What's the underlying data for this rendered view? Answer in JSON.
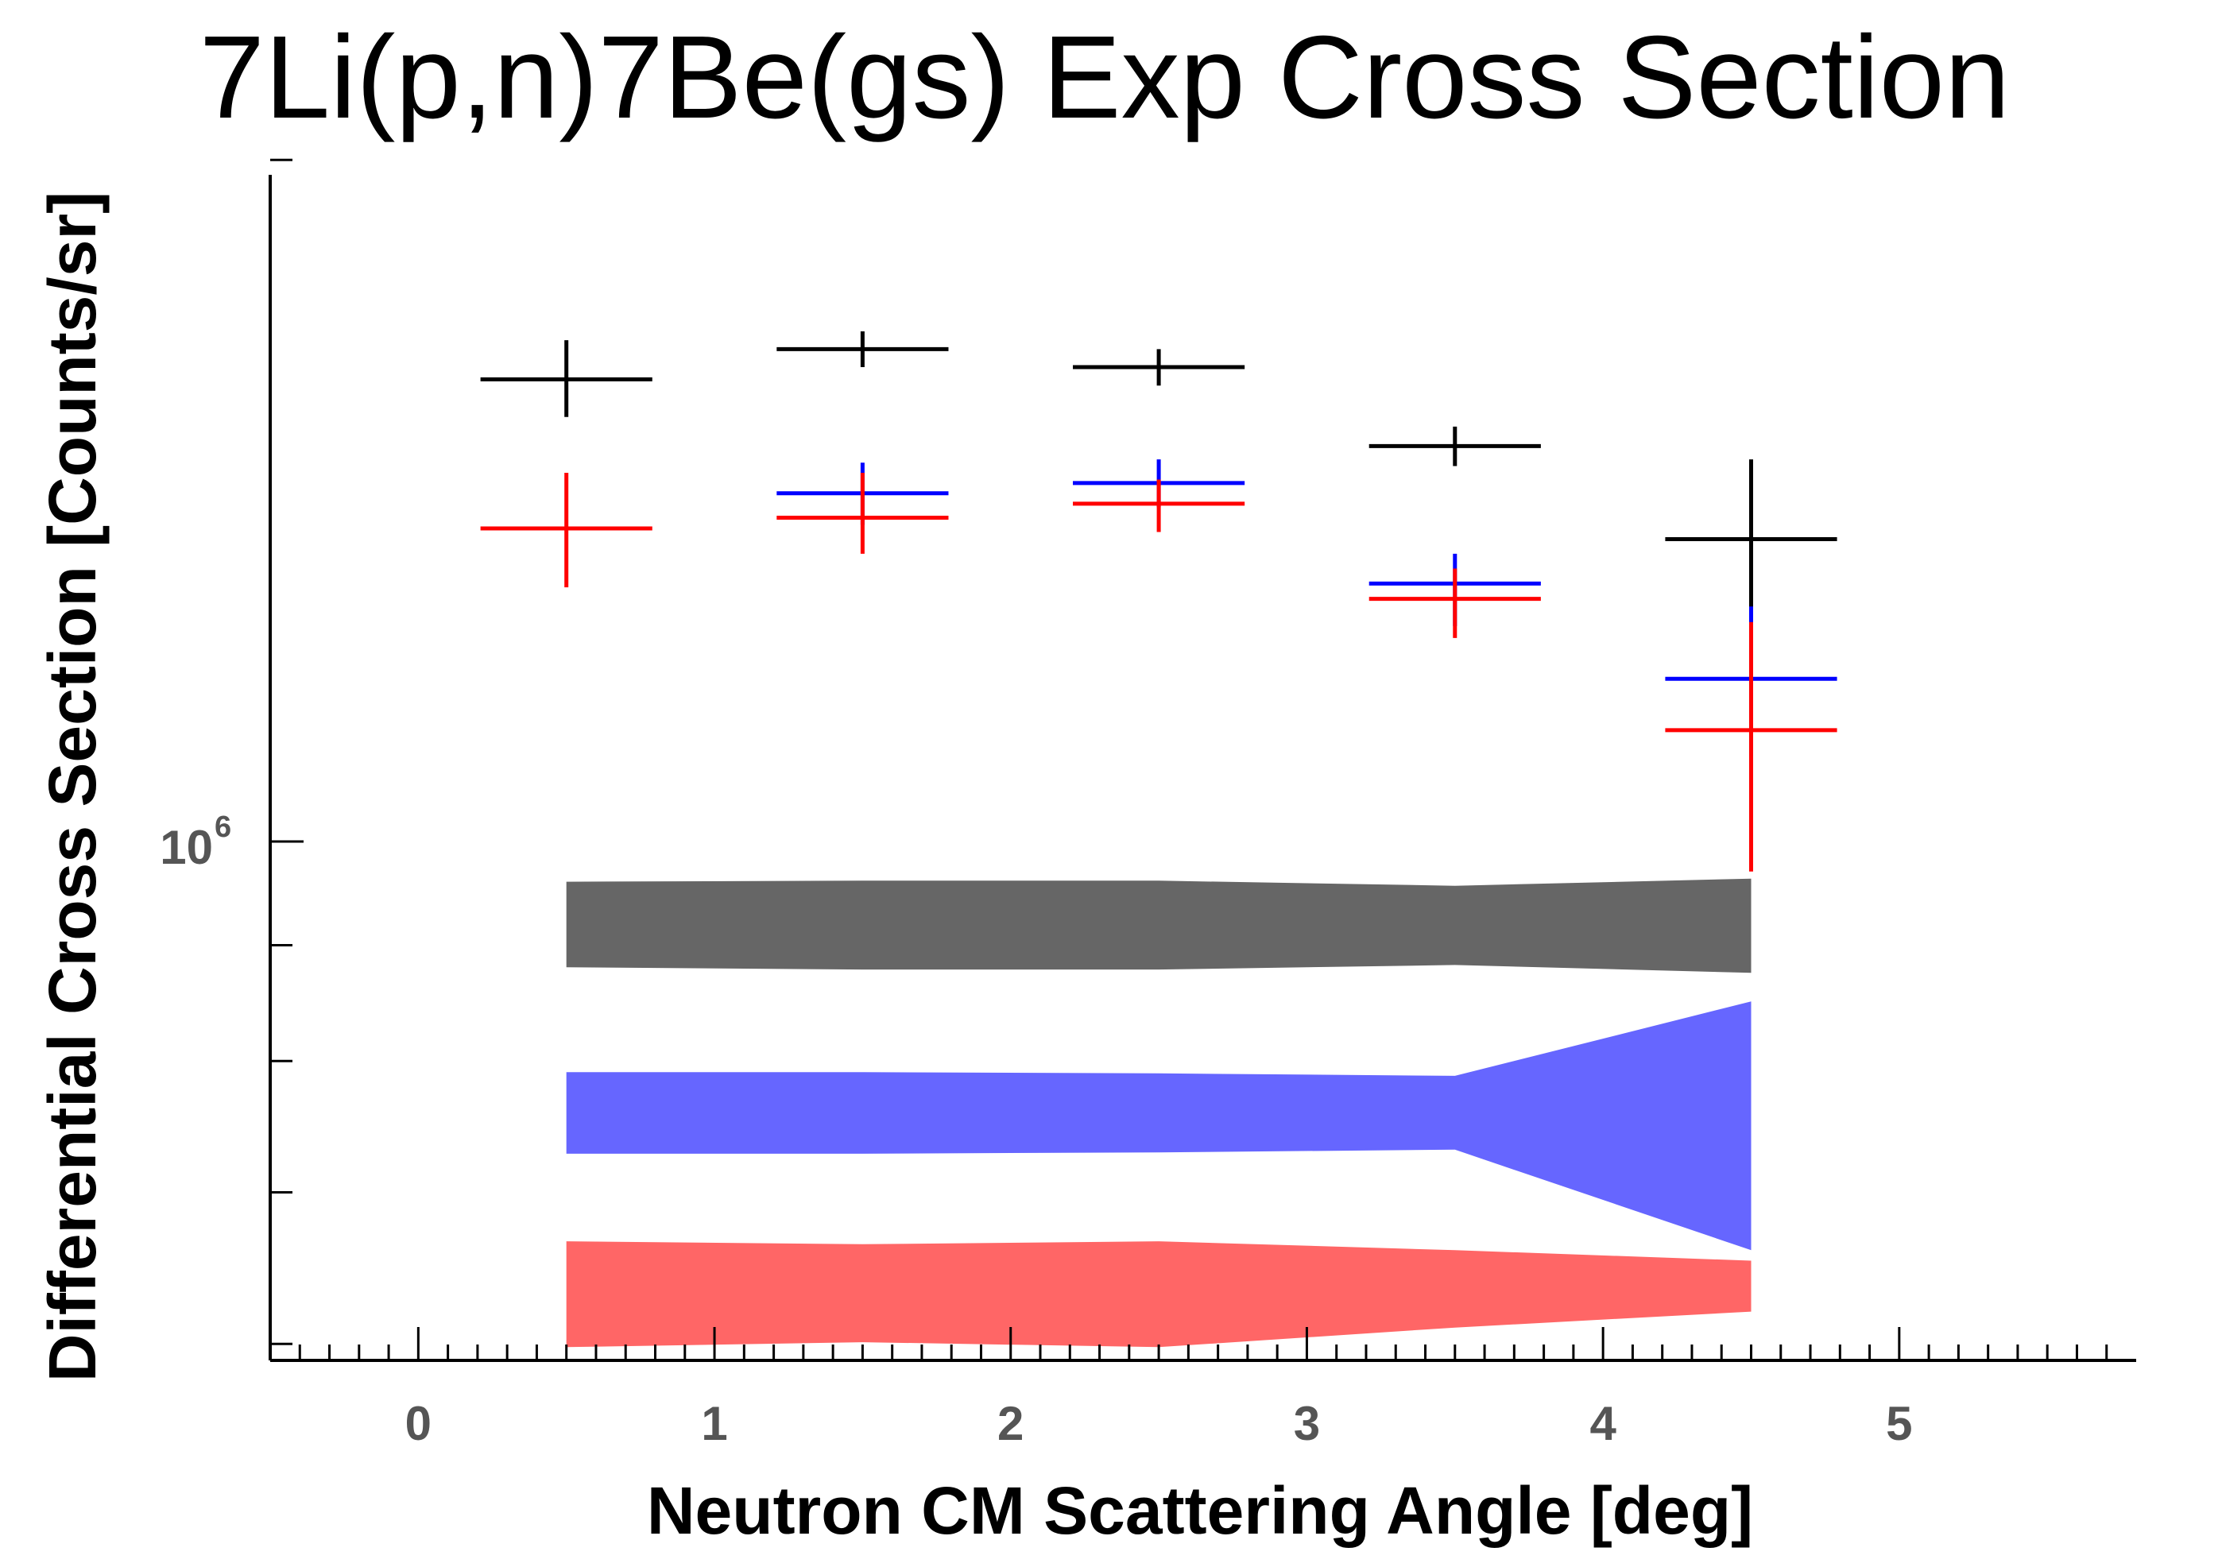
{
  "chart_data": {
    "type": "scatter",
    "title": "7Li(p,n)7Be(gs) Exp Cross Section",
    "xlabel": "Neutron CM Scattering Angle [deg]",
    "ylabel": "Differential Cross Section [Counts/sr]",
    "x_scale": "linear",
    "y_scale": "log",
    "xlim": [
      -0.5,
      5.8
    ],
    "ylim": [
      590000,
      1970000
    ],
    "x_ticks": [
      0,
      1,
      2,
      3,
      4,
      5
    ],
    "x_tick_labels": [
      "0",
      "1",
      "2",
      "3",
      "4",
      "5"
    ],
    "y_tick_label": {
      "base": "10",
      "exponent": "6",
      "value": 1000000
    },
    "y_minor_ticks": [
      600000,
      700000,
      800000,
      900000,
      2000000
    ],
    "grid": false,
    "legend": "none",
    "series": [
      {
        "color": "#000000",
        "x": [
          0.5,
          1.5,
          2.5,
          3.5,
          4.5
        ],
        "xerr": [
          0.29,
          0.29,
          0.29,
          0.29,
          0.29
        ],
        "y": [
          1600000,
          1650000,
          1620000,
          1495000,
          1360000
        ],
        "yerr_low": [
          60000,
          30000,
          30000,
          30000,
          115000
        ],
        "yerr_high": [
          65000,
          30000,
          30000,
          30000,
          115000
        ]
      },
      {
        "color": "#0000ff",
        "x": [
          1.5,
          2.5,
          3.5,
          4.5
        ],
        "xerr": [
          0.29,
          0.29,
          0.29,
          0.29
        ],
        "y": [
          1425000,
          1440000,
          1300000,
          1180000
        ],
        "yerr_low": [
          45000,
          35000,
          55000,
          90000
        ],
        "yerr_high": [
          45000,
          35000,
          40000,
          90000
        ]
      },
      {
        "color": "#ff0000",
        "x": [
          0.5,
          1.5,
          2.5,
          3.5,
          4.5
        ],
        "xerr": [
          0.29,
          0.29,
          0.29,
          0.29,
          0.29
        ],
        "y": [
          1375000,
          1390000,
          1410000,
          1280000,
          1120000
        ],
        "yerr_low": [
          80000,
          50000,
          40000,
          50000,
          150000
        ],
        "yerr_high": [
          80000,
          65000,
          35000,
          40000,
          130000
        ]
      }
    ],
    "bands": [
      {
        "color": "#666666",
        "x": [
          0.5,
          1.5,
          2.5,
          3.5,
          4.5
        ],
        "y_low": [
          880000,
          878000,
          878000,
          882000,
          875000
        ],
        "y_high": [
          960000,
          961000,
          961000,
          956000,
          963000
        ]
      },
      {
        "color": "#6666ff",
        "x": [
          0.5,
          1.5,
          2.5,
          3.5,
          4.5
        ],
        "y_low": [
          728000,
          728000,
          729000,
          731000,
          660000
        ],
        "y_high": [
          791000,
          791000,
          790000,
          788000,
          850000
        ]
      },
      {
        "color": "#ff6666",
        "x": [
          0.5,
          1.5,
          2.5,
          3.5,
          4.5
        ],
        "y_low": [
          598000,
          601000,
          598000,
          610000,
          620000
        ],
        "y_high": [
          666000,
          664000,
          666000,
          660000,
          653000
        ]
      }
    ]
  }
}
